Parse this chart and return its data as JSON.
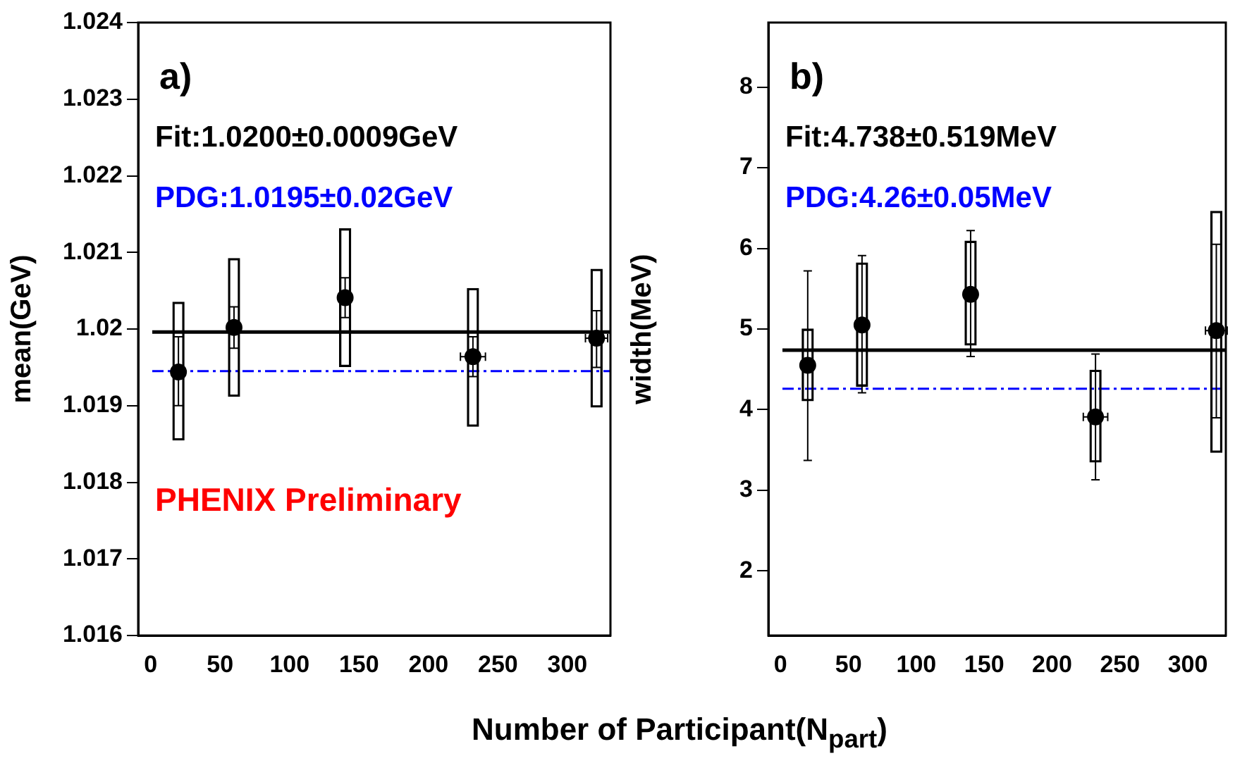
{
  "chart_data": [
    {
      "type": "scatter",
      "xlabel": "Number of Participant(N$_{part}$)",
      "ylabel": "mean(GeV)",
      "xlim": [
        -9,
        331
      ],
      "xticks": [
        0,
        50,
        100,
        150,
        200,
        250,
        300
      ],
      "ylim": [
        1.016,
        1.024
      ],
      "yticks": [
        1.016,
        1.017,
        1.018,
        1.019,
        1.02,
        1.021,
        1.022,
        1.023,
        1.024
      ],
      "grid": false,
      "legend": false,
      "marker": "circle",
      "series": [
        {
          "color": "#000000",
          "x": [
            20,
            60,
            140,
            232,
            321
          ],
          "values": [
            1.01944,
            1.02002,
            1.02041,
            1.01964,
            1.01988
          ],
          "errors": [
            [
              1.019,
              1.0199
            ],
            [
              1.01975,
              1.02029
            ],
            [
              1.02015,
              1.02067
            ],
            [
              1.01938,
              1.0199
            ],
            [
              1.0195,
              1.02024
            ]
          ],
          "xerrors": [
            null,
            null,
            null,
            9,
            8
          ]
        },
        {
          "type": "bar",
          "color": "#000000",
          "x": [
            20,
            60,
            140,
            232,
            321
          ],
          "base": [
            1.01855,
            1.01912,
            1.01951,
            1.01873,
            1.01898
          ],
          "values": [
            0.0018,
            0.0018,
            0.0018,
            0.0018,
            0.0018
          ]
        }
      ],
      "ref_lines": [
        {
          "axis": "y",
          "value": 1.01996,
          "label": "Fit:1.0200±0.0009GeV",
          "color": "#000000",
          "line_style": "solid"
        },
        {
          "axis": "y",
          "value": 1.01945,
          "label": "PDG:1.0195±0.02GeV",
          "color": "#0000ff",
          "line_style": "dashed"
        }
      ],
      "annotations": [
        "a)",
        "PHENIX Preliminary"
      ]
    },
    {
      "type": "scatter",
      "ylabel": "width(MeV)",
      "xlim": [
        -9,
        328
      ],
      "xticks": [
        0,
        50,
        100,
        150,
        200,
        250,
        300
      ],
      "ylim": [
        1.2,
        8.8
      ],
      "yticks": [
        2,
        3,
        4,
        5,
        6,
        7,
        8
      ],
      "grid": false,
      "legend": false,
      "marker": "circle",
      "series": [
        {
          "color": "#000000",
          "x": [
            20,
            60,
            140,
            232,
            321
          ],
          "values": [
            4.55,
            5.05,
            5.43,
            3.91,
            4.98
          ],
          "errors": [
            [
              3.37,
              5.72
            ],
            [
              4.21,
              5.91
            ],
            [
              4.66,
              6.22
            ],
            [
              3.13,
              4.69
            ],
            [
              3.9,
              6.05
            ]
          ],
          "xerrors": [
            null,
            null,
            null,
            9,
            8
          ]
        },
        {
          "type": "bar",
          "color": "#000000",
          "x": [
            20,
            60,
            140,
            232,
            321
          ],
          "base": [
            4.11,
            4.29,
            4.8,
            3.35,
            3.47
          ],
          "values": [
            0.89,
            1.53,
            1.29,
            1.14,
            2.99
          ]
        }
      ],
      "ref_lines": [
        {
          "axis": "y",
          "value": 4.738,
          "label": "Fit:4.738±0.519MeV",
          "color": "#000000",
          "line_style": "solid"
        },
        {
          "axis": "y",
          "value": 4.26,
          "label": "PDG:4.26±0.05MeV",
          "color": "#0000ff",
          "line_style": "dashed"
        }
      ],
      "annotations": [
        "b)"
      ]
    }
  ]
}
